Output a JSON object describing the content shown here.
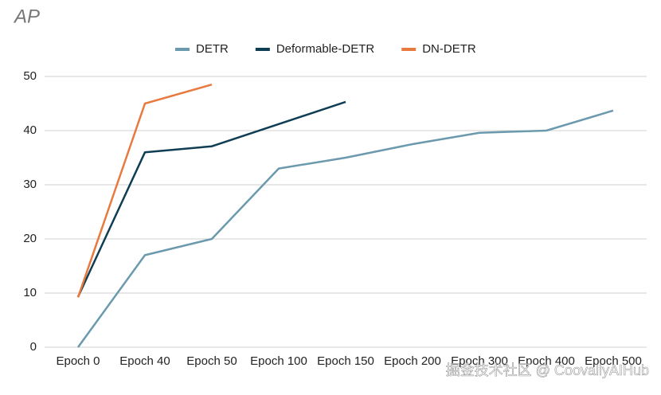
{
  "chart_data": {
    "type": "line",
    "title": "AP",
    "categories": [
      "Epoch 0",
      "Epoch 40",
      "Epoch 50",
      "Epoch 100",
      "Epoch 150",
      "Epoch 200",
      "Epoch 300",
      "Epoch 400",
      "Epoch 500"
    ],
    "series": [
      {
        "name": "DETR",
        "color": "#6b99ad",
        "values": [
          0,
          17,
          20,
          33,
          35,
          37.5,
          39.6,
          40,
          43.7
        ]
      },
      {
        "name": "Deformable-DETR",
        "color": "#0f3d53",
        "values": [
          9.3,
          36,
          37.1,
          41.2,
          45.3,
          null,
          null,
          null,
          null
        ]
      },
      {
        "name": "DN-DETR",
        "color": "#e8793f",
        "values": [
          9.2,
          45,
          48.5,
          null,
          null,
          null,
          null,
          null,
          null
        ]
      }
    ],
    "ylim": [
      0,
      50
    ],
    "yticks": [
      0,
      10,
      20,
      30,
      40,
      50
    ],
    "grid": true,
    "legend": "top",
    "watermark": "掘金技术社区 @ CoovallyAIHub"
  }
}
